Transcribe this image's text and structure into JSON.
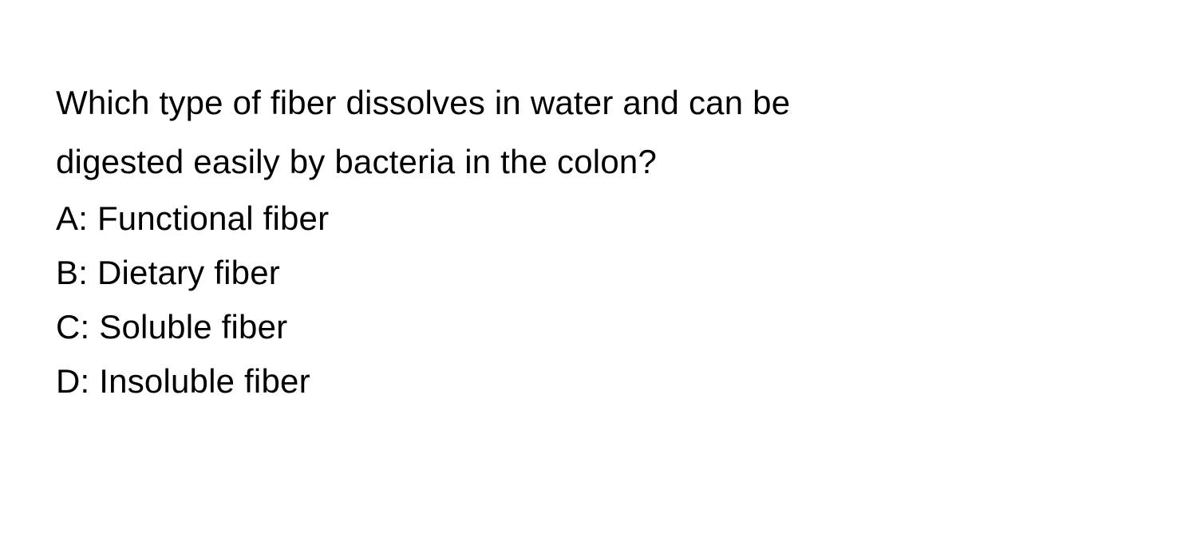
{
  "question": {
    "text_line_1": "Which type of fiber dissolves in water and can be",
    "text_line_2": "digested easily by bacteria in the colon?",
    "font_size": 42,
    "color": "#000000"
  },
  "options": [
    {
      "label": "A",
      "text": "Functional fiber"
    },
    {
      "label": "B",
      "text": "Dietary fiber"
    },
    {
      "label": "C",
      "text": "Soluble fiber"
    },
    {
      "label": "D",
      "text": "Insoluble fiber"
    }
  ],
  "option_separator": ": ",
  "styling": {
    "background_color": "#ffffff",
    "text_color": "#000000",
    "font_family": "-apple-system, sans-serif",
    "question_font_size": 42,
    "option_font_size": 42,
    "question_line_height": 1.75,
    "option_line_height": 1.62
  },
  "option_display": {
    "A": "A: Functional fiber",
    "B": "B: Dietary fiber",
    "C": "C: Soluble fiber",
    "D": "D: Insoluble fiber"
  }
}
